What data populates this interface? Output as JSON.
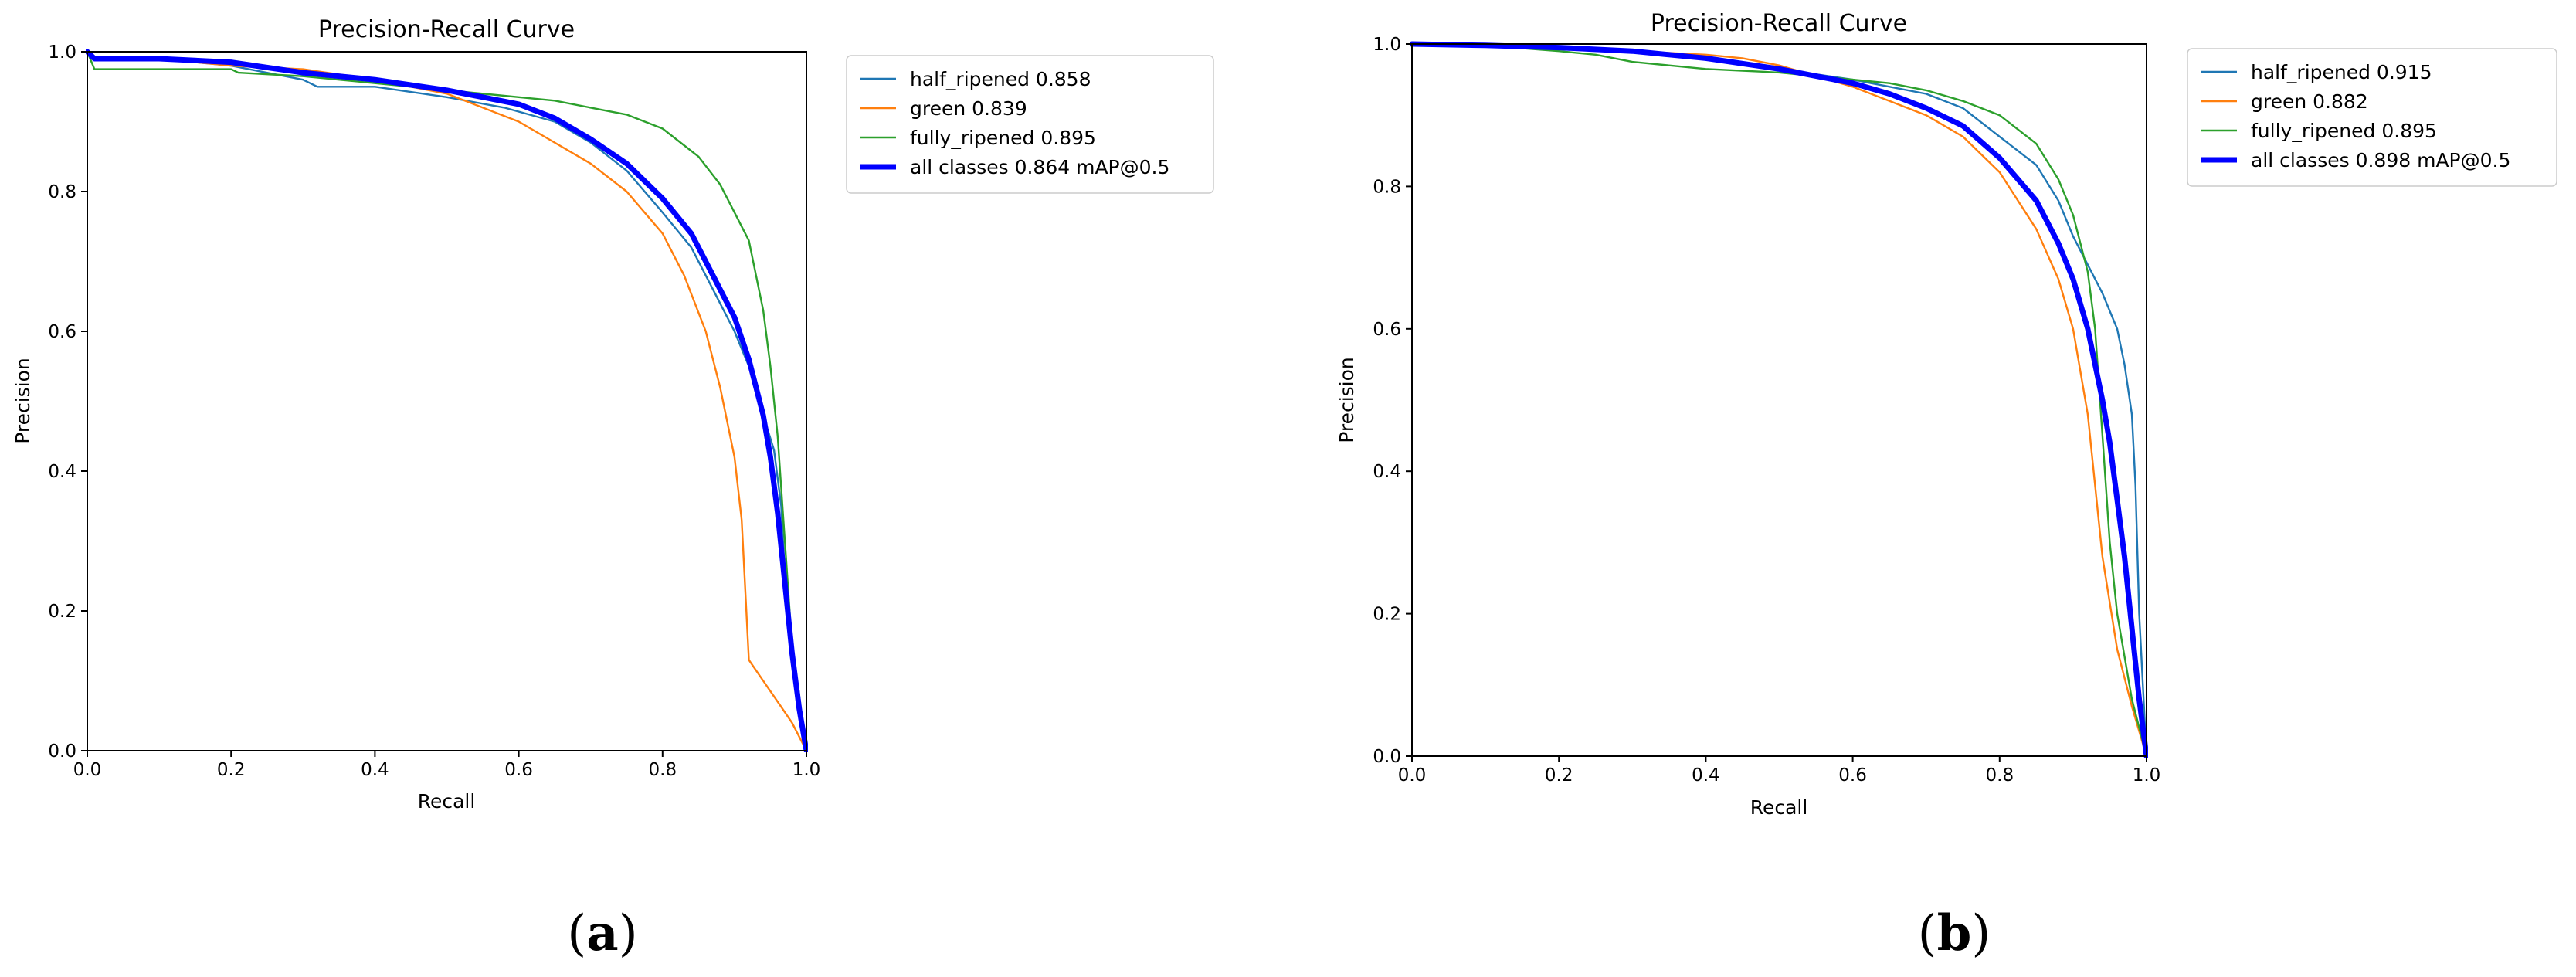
{
  "chart_data": [
    {
      "type": "line",
      "panel_label": {
        "open": "(",
        "letter": "a",
        "close": ")"
      },
      "title": "Precision-Recall Curve",
      "xlabel": "Recall",
      "ylabel": "Precision",
      "xlim": [
        0,
        1
      ],
      "ylim": [
        0,
        1
      ],
      "xticks": [
        0,
        0.2,
        0.4,
        0.6,
        0.8,
        1.0
      ],
      "xtick_labels": [
        "0.0",
        "0.2",
        "0.4",
        "0.6",
        "0.8",
        "1.0"
      ],
      "yticks": [
        0,
        0.2,
        0.4,
        0.6,
        0.8,
        1.0
      ],
      "ytick_labels": [
        "0.0",
        "0.2",
        "0.4",
        "0.6",
        "0.8",
        "1.0"
      ],
      "grid": false,
      "legend_position": "outside-upper-right",
      "series": [
        {
          "name": "half_ripened 0.858",
          "color": "#1f77b4",
          "emphasis": false,
          "x": [
            0,
            0.01,
            0.1,
            0.2,
            0.3,
            0.32,
            0.4,
            0.5,
            0.58,
            0.65,
            0.7,
            0.75,
            0.8,
            0.84,
            0.87,
            0.9,
            0.92,
            0.94,
            0.955,
            0.965,
            0.97,
            0.98,
            0.99,
            1.0
          ],
          "y": [
            1.0,
            0.99,
            0.99,
            0.98,
            0.96,
            0.95,
            0.95,
            0.935,
            0.92,
            0.9,
            0.87,
            0.83,
            0.77,
            0.72,
            0.66,
            0.6,
            0.55,
            0.48,
            0.43,
            0.35,
            0.25,
            0.15,
            0.08,
            0.0
          ]
        },
        {
          "name": "green 0.839",
          "color": "#ff7f0e",
          "emphasis": false,
          "x": [
            0,
            0.01,
            0.1,
            0.2,
            0.3,
            0.4,
            0.5,
            0.55,
            0.6,
            0.65,
            0.7,
            0.75,
            0.8,
            0.83,
            0.86,
            0.88,
            0.9,
            0.91,
            0.92,
            0.94,
            0.96,
            0.98,
            1.0
          ],
          "y": [
            1.0,
            0.99,
            0.99,
            0.98,
            0.975,
            0.96,
            0.94,
            0.92,
            0.9,
            0.87,
            0.84,
            0.8,
            0.74,
            0.68,
            0.6,
            0.52,
            0.42,
            0.33,
            0.13,
            0.1,
            0.07,
            0.04,
            0.0
          ]
        },
        {
          "name": "fully_ripened 0.895",
          "color": "#2ca02c",
          "emphasis": false,
          "x": [
            0,
            0.01,
            0.02,
            0.2,
            0.21,
            0.3,
            0.4,
            0.5,
            0.6,
            0.65,
            0.7,
            0.75,
            0.8,
            0.85,
            0.88,
            0.9,
            0.92,
            0.93,
            0.94,
            0.95,
            0.96,
            0.97,
            0.98,
            0.99,
            1.0
          ],
          "y": [
            1.0,
            0.975,
            0.975,
            0.975,
            0.97,
            0.965,
            0.955,
            0.945,
            0.935,
            0.93,
            0.92,
            0.91,
            0.89,
            0.85,
            0.81,
            0.77,
            0.73,
            0.68,
            0.63,
            0.55,
            0.45,
            0.3,
            0.15,
            0.05,
            0.0
          ]
        },
        {
          "name": "all classes 0.864 mAP@0.5",
          "color": "#0000ff",
          "emphasis": true,
          "x": [
            0,
            0.01,
            0.1,
            0.2,
            0.3,
            0.4,
            0.5,
            0.6,
            0.65,
            0.7,
            0.75,
            0.8,
            0.84,
            0.87,
            0.9,
            0.92,
            0.94,
            0.95,
            0.96,
            0.97,
            0.98,
            0.99,
            1.0
          ],
          "y": [
            1.0,
            0.99,
            0.99,
            0.985,
            0.97,
            0.96,
            0.945,
            0.925,
            0.905,
            0.875,
            0.84,
            0.79,
            0.74,
            0.68,
            0.62,
            0.56,
            0.48,
            0.42,
            0.34,
            0.24,
            0.14,
            0.06,
            0.0
          ]
        }
      ]
    },
    {
      "type": "line",
      "panel_label": {
        "open": "(",
        "letter": "b",
        "close": ")"
      },
      "title": "Precision-Recall Curve",
      "xlabel": "Recall",
      "ylabel": "Precision",
      "xlim": [
        0,
        1
      ],
      "ylim": [
        0,
        1
      ],
      "xticks": [
        0,
        0.2,
        0.4,
        0.6,
        0.8,
        1.0
      ],
      "xtick_labels": [
        "0.0",
        "0.2",
        "0.4",
        "0.6",
        "0.8",
        "1.0"
      ],
      "yticks": [
        0,
        0.2,
        0.4,
        0.6,
        0.8,
        1.0
      ],
      "ytick_labels": [
        "0.0",
        "0.2",
        "0.4",
        "0.6",
        "0.8",
        "1.0"
      ],
      "grid": false,
      "legend_position": "outside-upper-right",
      "series": [
        {
          "name": "half_ripened 0.915",
          "color": "#1f77b4",
          "emphasis": false,
          "x": [
            0,
            0.1,
            0.2,
            0.3,
            0.4,
            0.5,
            0.6,
            0.7,
            0.75,
            0.8,
            0.85,
            0.88,
            0.9,
            0.92,
            0.94,
            0.96,
            0.97,
            0.98,
            0.985,
            0.99,
            1.0
          ],
          "y": [
            1.0,
            0.998,
            0.995,
            0.99,
            0.98,
            0.965,
            0.95,
            0.93,
            0.91,
            0.87,
            0.83,
            0.78,
            0.73,
            0.69,
            0.65,
            0.6,
            0.55,
            0.48,
            0.38,
            0.2,
            0.0
          ]
        },
        {
          "name": "green 0.882",
          "color": "#ff7f0e",
          "emphasis": false,
          "x": [
            0,
            0.1,
            0.2,
            0.3,
            0.4,
            0.45,
            0.5,
            0.55,
            0.6,
            0.65,
            0.7,
            0.75,
            0.8,
            0.85,
            0.88,
            0.9,
            0.92,
            0.94,
            0.96,
            0.98,
            1.0
          ],
          "y": [
            1.0,
            0.998,
            0.995,
            0.99,
            0.985,
            0.98,
            0.97,
            0.955,
            0.94,
            0.92,
            0.9,
            0.87,
            0.82,
            0.74,
            0.67,
            0.6,
            0.48,
            0.28,
            0.15,
            0.07,
            0.0
          ]
        },
        {
          "name": "fully_ripened 0.895",
          "color": "#2ca02c",
          "emphasis": false,
          "x": [
            0,
            0.1,
            0.2,
            0.25,
            0.3,
            0.35,
            0.4,
            0.5,
            0.55,
            0.6,
            0.65,
            0.7,
            0.75,
            0.8,
            0.85,
            0.88,
            0.9,
            0.92,
            0.93,
            0.94,
            0.95,
            0.96,
            0.98,
            1.0
          ],
          "y": [
            1.0,
            0.998,
            0.99,
            0.985,
            0.975,
            0.97,
            0.965,
            0.96,
            0.955,
            0.95,
            0.945,
            0.935,
            0.92,
            0.9,
            0.86,
            0.81,
            0.76,
            0.68,
            0.6,
            0.45,
            0.3,
            0.2,
            0.08,
            0.0
          ]
        },
        {
          "name": "all classes 0.898 mAP@0.5",
          "color": "#0000ff",
          "emphasis": true,
          "x": [
            0,
            0.1,
            0.2,
            0.3,
            0.4,
            0.5,
            0.6,
            0.65,
            0.7,
            0.75,
            0.8,
            0.85,
            0.88,
            0.9,
            0.92,
            0.94,
            0.95,
            0.96,
            0.97,
            0.98,
            0.99,
            1.0
          ],
          "y": [
            1.0,
            0.998,
            0.995,
            0.99,
            0.98,
            0.965,
            0.945,
            0.93,
            0.91,
            0.885,
            0.84,
            0.78,
            0.72,
            0.67,
            0.6,
            0.5,
            0.44,
            0.36,
            0.28,
            0.18,
            0.08,
            0.0
          ]
        }
      ]
    }
  ]
}
